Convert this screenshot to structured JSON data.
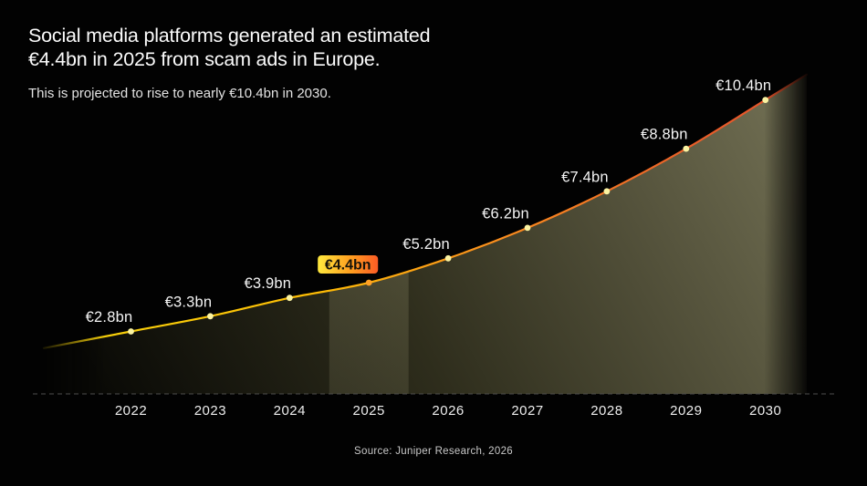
{
  "header": {
    "title_line1": "Social media platforms generated an estimated",
    "title_line2": "€4.4bn in 2025 from scam ads in Europe.",
    "subtitle": "This is projected to rise to nearly €10.4bn in 2030."
  },
  "chart_data": {
    "type": "area",
    "title": "Social media platforms generated an estimated €4.4bn in 2025 from scam ads in Europe.",
    "subtitle": "This is projected to rise to nearly €10.4bn in 2030.",
    "x": [
      2022,
      2023,
      2024,
      2025,
      2026,
      2027,
      2028,
      2029,
      2030
    ],
    "x_tick_labels": [
      "2022",
      "2023",
      "2024",
      "2025",
      "2026",
      "2027",
      "2028",
      "2029",
      "2030"
    ],
    "values": [
      2.8,
      3.3,
      3.9,
      4.4,
      5.2,
      6.2,
      7.4,
      8.8,
      10.4
    ],
    "point_labels": [
      "€2.8bn",
      "€3.3bn",
      "€3.9bn",
      "€4.4bn",
      "€5.2bn",
      "€6.2bn",
      "€7.4bn",
      "€8.8bn",
      "€10.4bn"
    ],
    "unit": "billion EUR",
    "ylim": [
      0,
      12
    ],
    "grid": false,
    "legend": false,
    "highlight": {
      "year": 2025,
      "label": "€4.4bn"
    },
    "colors": {
      "background": "#000000",
      "line_gradient": [
        "#f6d60c",
        "#fdbd05",
        "#fb8d1e",
        "#ea5f29",
        "#e14e2b"
      ],
      "area_gradient": [
        "#0a0a06",
        "#2e2d1c",
        "#55533c",
        "#716f53"
      ],
      "highlight_band": "#d5d0a0",
      "point": "#fbf3a1",
      "highlight_point": "#ffa126",
      "badge_gradient": [
        "#ffe93e",
        "#ff9e1f",
        "#fb5c25"
      ],
      "badge_text": "#161309",
      "value_label": "#f4f4f4",
      "axis_line": "#4f4f4d",
      "tick_label": "#ededed"
    }
  },
  "footer": {
    "source": "Source: Juniper Research, 2026"
  }
}
